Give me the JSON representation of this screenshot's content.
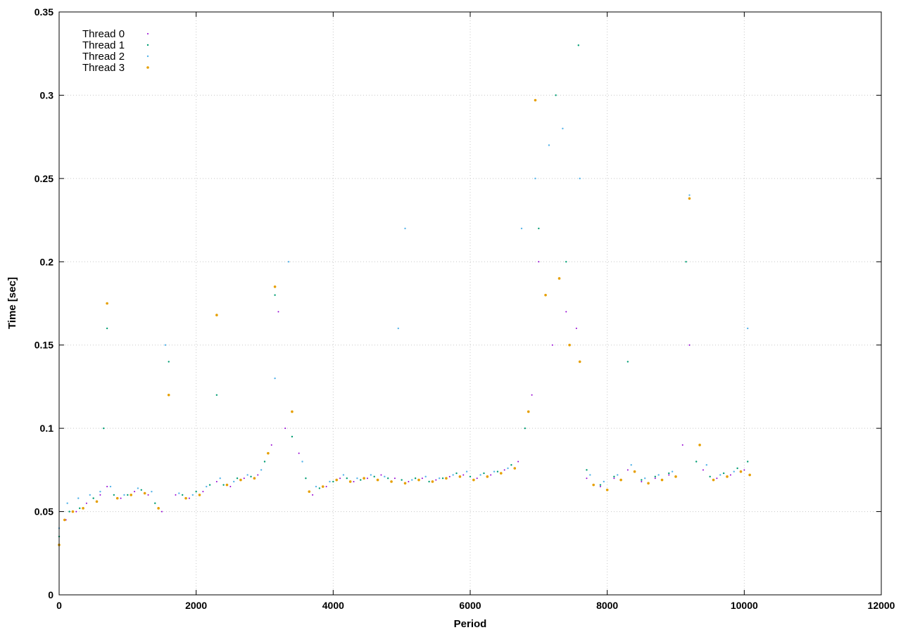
{
  "chart_data": {
    "type": "scatter",
    "title": "",
    "xlabel": "Period",
    "ylabel": "Time [sec]",
    "xlim": [
      0,
      12000
    ],
    "ylim": [
      0,
      0.35
    ],
    "x_ticks": [
      0,
      2000,
      4000,
      6000,
      8000,
      10000,
      12000
    ],
    "x_tick_labels": [
      "0",
      "2000",
      "4000",
      "6000",
      "8000",
      "10000",
      "12000"
    ],
    "y_ticks": [
      0,
      0.05,
      0.1,
      0.15,
      0.2,
      0.25,
      0.3,
      0.35
    ],
    "y_tick_labels": [
      "0",
      "0.05",
      "0.1",
      "0.15",
      "0.2",
      "0.25",
      "0.3",
      "0.35"
    ],
    "grid": true,
    "legend_position": "top-left",
    "series": [
      {
        "name": "Thread 0",
        "color": "#9400d3",
        "marker_size": 1.0,
        "points": [
          [
            0,
            0.03
          ],
          [
            100,
            0.045
          ],
          [
            250,
            0.05
          ],
          [
            400,
            0.055
          ],
          [
            600,
            0.06
          ],
          [
            700,
            0.065
          ],
          [
            900,
            0.058
          ],
          [
            1100,
            0.062
          ],
          [
            1300,
            0.06
          ],
          [
            1500,
            0.05
          ],
          [
            1700,
            0.06
          ],
          [
            1900,
            0.058
          ],
          [
            2100,
            0.062
          ],
          [
            2300,
            0.068
          ],
          [
            2500,
            0.065
          ],
          [
            2700,
            0.07
          ],
          [
            2900,
            0.072
          ],
          [
            3100,
            0.09
          ],
          [
            3200,
            0.17
          ],
          [
            3300,
            0.1
          ],
          [
            3500,
            0.085
          ],
          [
            3700,
            0.06
          ],
          [
            3900,
            0.065
          ],
          [
            4100,
            0.07
          ],
          [
            4300,
            0.068
          ],
          [
            4500,
            0.07
          ],
          [
            4700,
            0.072
          ],
          [
            4900,
            0.07
          ],
          [
            5100,
            0.068
          ],
          [
            5300,
            0.07
          ],
          [
            5500,
            0.069
          ],
          [
            5700,
            0.071
          ],
          [
            5900,
            0.072
          ],
          [
            6100,
            0.07
          ],
          [
            6300,
            0.072
          ],
          [
            6500,
            0.075
          ],
          [
            6700,
            0.08
          ],
          [
            6900,
            0.12
          ],
          [
            7000,
            0.2
          ],
          [
            7200,
            0.15
          ],
          [
            7400,
            0.17
          ],
          [
            7550,
            0.16
          ],
          [
            7700,
            0.07
          ],
          [
            7900,
            0.065
          ],
          [
            8100,
            0.07
          ],
          [
            8300,
            0.075
          ],
          [
            8500,
            0.068
          ],
          [
            8700,
            0.07
          ],
          [
            8900,
            0.072
          ],
          [
            9100,
            0.09
          ],
          [
            9200,
            0.15
          ],
          [
            9400,
            0.075
          ],
          [
            9600,
            0.07
          ],
          [
            9800,
            0.072
          ],
          [
            10000,
            0.075
          ]
        ]
      },
      {
        "name": "Thread 1",
        "color": "#009e73",
        "marker_size": 1.2,
        "points": [
          [
            0,
            0.035
          ],
          [
            150,
            0.05
          ],
          [
            300,
            0.052
          ],
          [
            500,
            0.058
          ],
          [
            650,
            0.1
          ],
          [
            700,
            0.16
          ],
          [
            800,
            0.06
          ],
          [
            1000,
            0.06
          ],
          [
            1200,
            0.063
          ],
          [
            1400,
            0.055
          ],
          [
            1600,
            0.14
          ],
          [
            1800,
            0.06
          ],
          [
            2000,
            0.062
          ],
          [
            2200,
            0.066
          ],
          [
            2300,
            0.12
          ],
          [
            2400,
            0.066
          ],
          [
            2600,
            0.07
          ],
          [
            2800,
            0.071
          ],
          [
            3000,
            0.08
          ],
          [
            3150,
            0.18
          ],
          [
            3400,
            0.095
          ],
          [
            3600,
            0.07
          ],
          [
            3800,
            0.064
          ],
          [
            4000,
            0.068
          ],
          [
            4200,
            0.07
          ],
          [
            4400,
            0.069
          ],
          [
            4600,
            0.071
          ],
          [
            4800,
            0.07
          ],
          [
            5000,
            0.069
          ],
          [
            5200,
            0.07
          ],
          [
            5400,
            0.068
          ],
          [
            5600,
            0.07
          ],
          [
            5800,
            0.073
          ],
          [
            6000,
            0.071
          ],
          [
            6200,
            0.073
          ],
          [
            6400,
            0.074
          ],
          [
            6600,
            0.078
          ],
          [
            6800,
            0.1
          ],
          [
            7000,
            0.22
          ],
          [
            7250,
            0.3
          ],
          [
            7400,
            0.2
          ],
          [
            7580,
            0.33
          ],
          [
            7700,
            0.075
          ],
          [
            7900,
            0.066
          ],
          [
            8100,
            0.071
          ],
          [
            8300,
            0.14
          ],
          [
            8500,
            0.069
          ],
          [
            8700,
            0.071
          ],
          [
            8900,
            0.073
          ],
          [
            9150,
            0.2
          ],
          [
            9300,
            0.08
          ],
          [
            9500,
            0.071
          ],
          [
            9700,
            0.073
          ],
          [
            9900,
            0.076
          ],
          [
            10050,
            0.08
          ]
        ]
      },
      {
        "name": "Thread 2",
        "color": "#56b4e9",
        "marker_size": 1.2,
        "points": [
          [
            0,
            0.04
          ],
          [
            120,
            0.055
          ],
          [
            280,
            0.058
          ],
          [
            450,
            0.06
          ],
          [
            600,
            0.062
          ],
          [
            750,
            0.065
          ],
          [
            950,
            0.06
          ],
          [
            1150,
            0.064
          ],
          [
            1350,
            0.062
          ],
          [
            1550,
            0.15
          ],
          [
            1750,
            0.061
          ],
          [
            1950,
            0.06
          ],
          [
            2150,
            0.065
          ],
          [
            2350,
            0.07
          ],
          [
            2550,
            0.068
          ],
          [
            2750,
            0.072
          ],
          [
            2950,
            0.075
          ],
          [
            3150,
            0.13
          ],
          [
            3350,
            0.2
          ],
          [
            3550,
            0.08
          ],
          [
            3750,
            0.065
          ],
          [
            3950,
            0.068
          ],
          [
            4150,
            0.072
          ],
          [
            4350,
            0.07
          ],
          [
            4550,
            0.072
          ],
          [
            4750,
            0.071
          ],
          [
            4950,
            0.16
          ],
          [
            5050,
            0.22
          ],
          [
            5150,
            0.069
          ],
          [
            5350,
            0.071
          ],
          [
            5550,
            0.07
          ],
          [
            5750,
            0.072
          ],
          [
            5950,
            0.074
          ],
          [
            6150,
            0.072
          ],
          [
            6350,
            0.074
          ],
          [
            6550,
            0.076
          ],
          [
            6750,
            0.22
          ],
          [
            6950,
            0.25
          ],
          [
            7150,
            0.27
          ],
          [
            7350,
            0.28
          ],
          [
            7600,
            0.25
          ],
          [
            7750,
            0.072
          ],
          [
            7950,
            0.068
          ],
          [
            8150,
            0.072
          ],
          [
            8350,
            0.078
          ],
          [
            8550,
            0.07
          ],
          [
            8750,
            0.072
          ],
          [
            8950,
            0.074
          ],
          [
            9200,
            0.24
          ],
          [
            9450,
            0.078
          ],
          [
            9650,
            0.072
          ],
          [
            9850,
            0.074
          ],
          [
            10050,
            0.16
          ]
        ]
      },
      {
        "name": "Thread 3",
        "color": "#e69f00",
        "marker_size": 1.8,
        "points": [
          [
            0,
            0.03
          ],
          [
            80,
            0.045
          ],
          [
            200,
            0.05
          ],
          [
            350,
            0.052
          ],
          [
            550,
            0.056
          ],
          [
            700,
            0.175
          ],
          [
            850,
            0.058
          ],
          [
            1050,
            0.06
          ],
          [
            1250,
            0.061
          ],
          [
            1450,
            0.052
          ],
          [
            1600,
            0.12
          ],
          [
            1850,
            0.058
          ],
          [
            2050,
            0.06
          ],
          [
            2300,
            0.168
          ],
          [
            2450,
            0.066
          ],
          [
            2650,
            0.069
          ],
          [
            2850,
            0.07
          ],
          [
            3050,
            0.085
          ],
          [
            3150,
            0.185
          ],
          [
            3400,
            0.11
          ],
          [
            3650,
            0.062
          ],
          [
            3850,
            0.065
          ],
          [
            4050,
            0.069
          ],
          [
            4250,
            0.068
          ],
          [
            4450,
            0.07
          ],
          [
            4650,
            0.069
          ],
          [
            4850,
            0.068
          ],
          [
            5050,
            0.067
          ],
          [
            5250,
            0.069
          ],
          [
            5450,
            0.068
          ],
          [
            5650,
            0.07
          ],
          [
            5850,
            0.071
          ],
          [
            6050,
            0.069
          ],
          [
            6250,
            0.071
          ],
          [
            6450,
            0.073
          ],
          [
            6650,
            0.076
          ],
          [
            6850,
            0.11
          ],
          [
            6950,
            0.297
          ],
          [
            7100,
            0.18
          ],
          [
            7300,
            0.19
          ],
          [
            7450,
            0.15
          ],
          [
            7600,
            0.14
          ],
          [
            7800,
            0.066
          ],
          [
            8000,
            0.063
          ],
          [
            8200,
            0.069
          ],
          [
            8400,
            0.074
          ],
          [
            8600,
            0.067
          ],
          [
            8800,
            0.069
          ],
          [
            9000,
            0.071
          ],
          [
            9200,
            0.238
          ],
          [
            9350,
            0.09
          ],
          [
            9550,
            0.069
          ],
          [
            9750,
            0.071
          ],
          [
            9950,
            0.074
          ],
          [
            10080,
            0.072
          ]
        ]
      }
    ]
  }
}
